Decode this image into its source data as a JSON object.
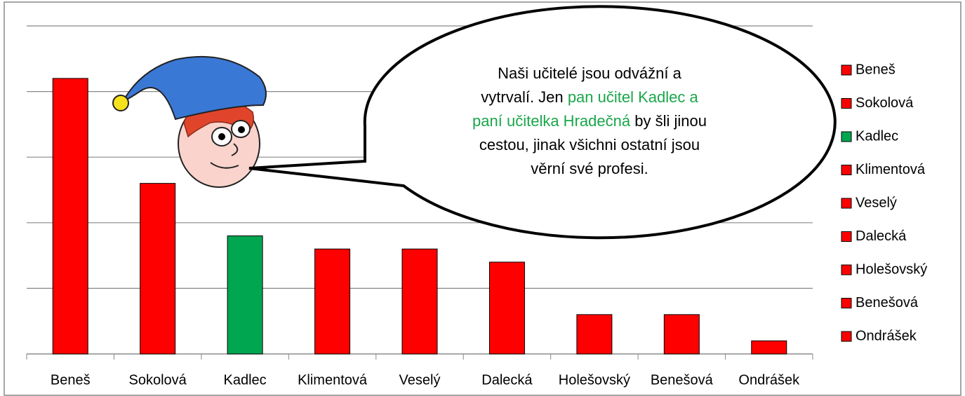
{
  "chart_data": {
    "type": "bar",
    "categories": [
      "Beneš",
      "Sokolová",
      "Kadlec",
      "Klimentová",
      "Veselý",
      "Dalecká",
      "Holešovský",
      "Benešová",
      "Ondrášek"
    ],
    "values": [
      21,
      13,
      9,
      8,
      8,
      7,
      3,
      3,
      1
    ],
    "colors": [
      "#ff0000",
      "#ff0000",
      "#00a650",
      "#ff0000",
      "#ff0000",
      "#ff0000",
      "#ff0000",
      "#ff0000",
      "#ff0000"
    ],
    "ylim": [
      0,
      25
    ],
    "yticks": [
      0,
      5,
      10,
      15,
      20,
      25
    ],
    "show_ytick_labels": false,
    "grid": true,
    "legend": "right"
  },
  "speech_bubble": {
    "highlight_color": "#1aa64a",
    "lines": [
      [
        {
          "text": "Naši učitelé jsou odvážní a",
          "highlight": false
        }
      ],
      [
        {
          "text": "vytrvalí. Jen",
          "highlight": false
        },
        {
          "text": "pan učitel Kadlec a",
          "highlight": true
        }
      ],
      [
        {
          "text": "paní učitelka Hradečná",
          "highlight": true
        },
        {
          "text": "by šli jinou",
          "highlight": false
        }
      ],
      [
        {
          "text": "cestou, jinak všichni ostatní jsou",
          "highlight": false
        }
      ],
      [
        {
          "text": "věrní své profesi.",
          "highlight": false
        }
      ]
    ]
  }
}
